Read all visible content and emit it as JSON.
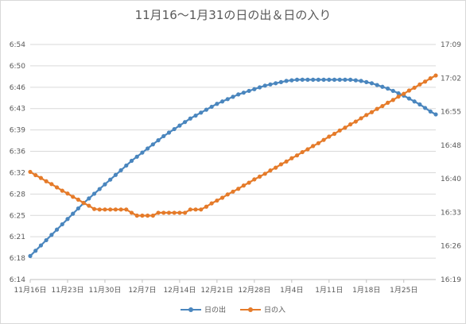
{
  "chart_data": {
    "type": "line",
    "title": "11月16～1月31の日の出＆日の入り",
    "x_tick_labels": [
      "11月16日",
      "11月23日",
      "11月30日",
      "12月7日",
      "12月14日",
      "12月21日",
      "12月28日",
      "1月4日",
      "1月11日",
      "1月18日",
      "1月25日"
    ],
    "y_left": {
      "min_minutes": 374,
      "max_minutes": 414,
      "tick_labels": [
        "6:14",
        "6:18",
        "6:21",
        "6:25",
        "6:28",
        "6:32",
        "6:36",
        "6:39",
        "6:43",
        "6:46",
        "6:50",
        "6:54"
      ]
    },
    "y_right": {
      "min_minutes": 979,
      "max_minutes": 1029,
      "tick_labels": [
        "16:19",
        "16:26",
        "16:33",
        "16:40",
        "16:48",
        "16:55",
        "17:02",
        "17:09"
      ]
    },
    "series": [
      {
        "name": "日の出",
        "axis": "left",
        "color": "#4a86be",
        "values": [
          378.0,
          378.9,
          379.8,
          380.7,
          381.6,
          382.5,
          383.4,
          384.3,
          385.2,
          386.1,
          387.0,
          387.8,
          388.6,
          389.4,
          390.2,
          391.0,
          391.8,
          392.6,
          393.4,
          394.2,
          394.9,
          395.6,
          396.3,
          397.0,
          397.7,
          398.4,
          399.0,
          399.6,
          400.2,
          400.8,
          401.4,
          401.9,
          402.4,
          402.9,
          403.4,
          403.9,
          404.3,
          404.7,
          405.1,
          405.5,
          405.8,
          406.1,
          406.4,
          406.7,
          407.0,
          407.2,
          407.4,
          407.6,
          407.8,
          407.9,
          408.0,
          408.0,
          408.0,
          408.0,
          408.0,
          408.0,
          408.0,
          408.0,
          408.0,
          408.0,
          408.0,
          407.9,
          407.8,
          407.6,
          407.4,
          407.1,
          406.8,
          406.5,
          406.1,
          405.7,
          405.3,
          404.8,
          404.3,
          403.8,
          403.2,
          402.6,
          402.1
        ]
      },
      {
        "name": "日の入",
        "axis": "right",
        "color": "#e57b2a",
        "values": [
          1001.9,
          1001.2,
          1000.6,
          999.9,
          999.3,
          998.6,
          997.9,
          997.3,
          996.6,
          996.0,
          995.3,
          994.7,
          994.0,
          993.9,
          993.9,
          993.9,
          993.9,
          993.9,
          993.9,
          993.2,
          992.6,
          992.6,
          992.6,
          992.6,
          993.2,
          993.2,
          993.2,
          993.2,
          993.2,
          993.2,
          993.9,
          993.9,
          993.9,
          994.5,
          995.2,
          995.8,
          996.4,
          997.1,
          997.7,
          998.3,
          999.0,
          999.6,
          1000.3,
          1000.9,
          1001.5,
          1002.2,
          1002.8,
          1003.5,
          1004.1,
          1004.8,
          1005.4,
          1006.1,
          1006.7,
          1007.4,
          1008.0,
          1008.7,
          1009.4,
          1010.0,
          1010.7,
          1011.3,
          1012.0,
          1012.6,
          1013.3,
          1014.0,
          1014.6,
          1015.3,
          1015.9,
          1016.6,
          1017.2,
          1017.9,
          1018.5,
          1019.2,
          1019.8,
          1020.5,
          1021.1,
          1021.8,
          1022.4
        ]
      }
    ],
    "legend_position": "bottom",
    "grid": "horizontal"
  }
}
